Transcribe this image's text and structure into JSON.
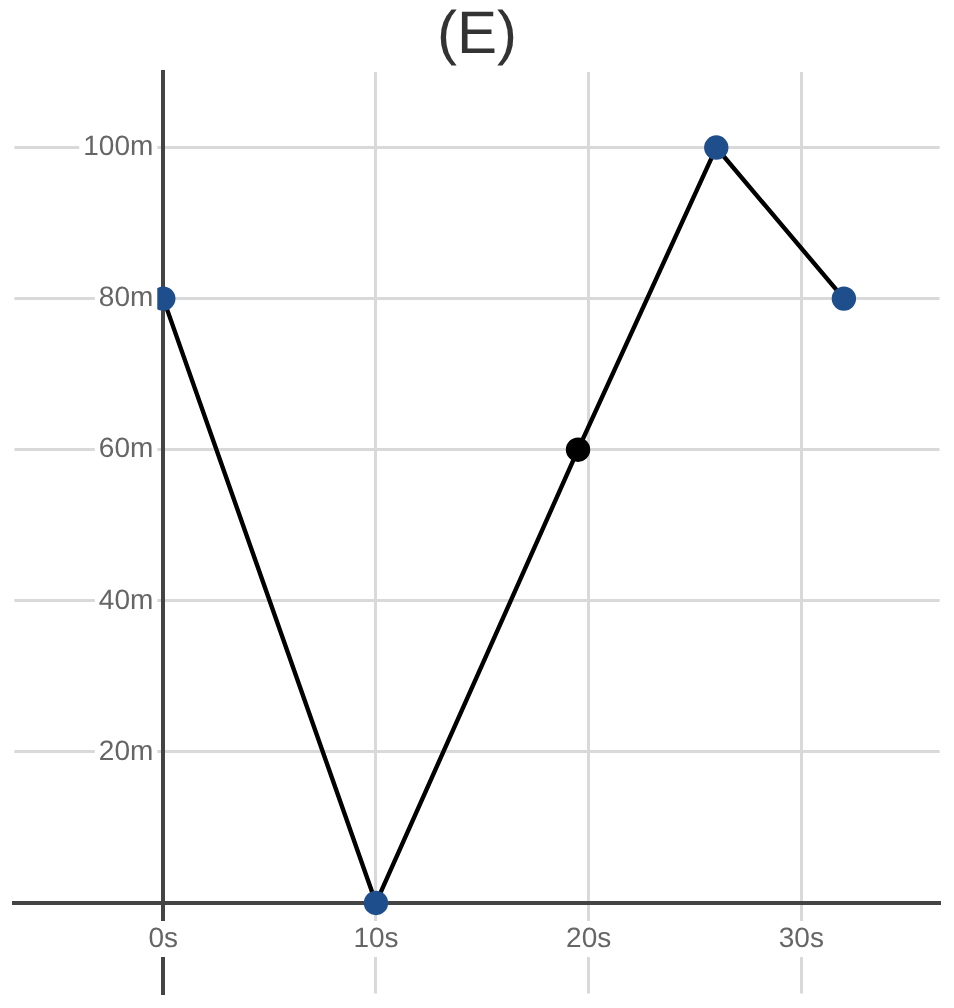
{
  "chart_data": {
    "type": "line",
    "title": "(E)",
    "x": [
      0,
      10,
      19.5,
      26,
      32
    ],
    "series": [
      {
        "color": "#000000",
        "colors": [
          "#1f4e8c",
          "#1f4e8c",
          "#000000",
          "#1f4e8c",
          "#1f4e8c"
        ],
        "values": [
          80,
          0,
          60,
          100,
          80
        ]
      }
    ],
    "xlim": [
      -7,
      36.5
    ],
    "ylim": [
      -12,
      110
    ],
    "xticks": [
      {
        "value": 0,
        "label": "0s"
      },
      {
        "value": 10,
        "label": "10s"
      },
      {
        "value": 20,
        "label": "20s"
      },
      {
        "value": 30,
        "label": "30s"
      }
    ],
    "yticks": [
      {
        "value": 20,
        "label": "20m"
      },
      {
        "value": 40,
        "label": "40m"
      },
      {
        "value": 60,
        "label": "60m"
      },
      {
        "value": 80,
        "label": "80m"
      },
      {
        "value": 100,
        "label": "100m"
      }
    ],
    "grid": true,
    "marker": "circle",
    "line_style": "solid"
  }
}
